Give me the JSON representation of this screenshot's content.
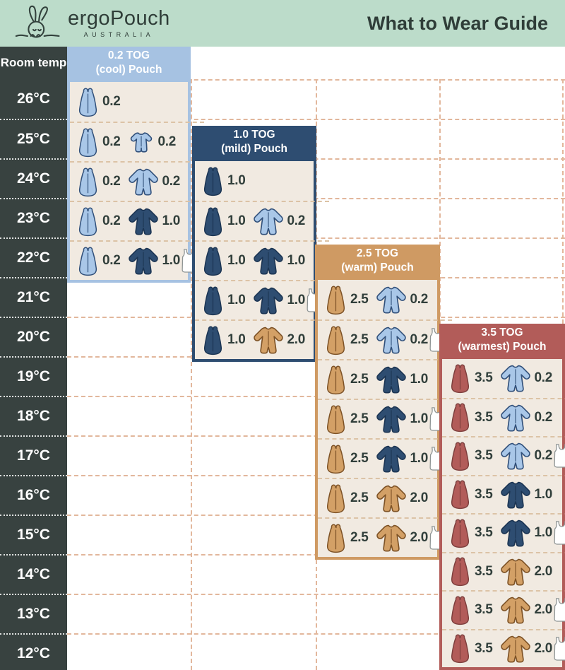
{
  "header": {
    "brand": "ergoPouch",
    "brand_sub": "AUSTRALIA",
    "title": "What to Wear Guide"
  },
  "colors": {
    "banner_bg": "#bcdcca",
    "banner_text": "#2f3d38",
    "temp_col_bg": "#384240",
    "panel_bg_cream": "#f1eae1",
    "grid_dash": "#e2b79c",
    "row_dash": "#dcc3a6",
    "label_text": "#313f3b",
    "palette": {
      "lightblue": {
        "fill": "#a9c7e8",
        "stroke": "#31507a"
      },
      "navy": {
        "fill": "#2e4d71",
        "stroke": "#1c3553"
      },
      "tan": {
        "fill": "#d3a066",
        "stroke": "#7d5226"
      },
      "red": {
        "fill": "#b25c59",
        "stroke": "#7e403e"
      },
      "singlet": {
        "fill": "#ffffff",
        "stroke": "#8e9494"
      }
    }
  },
  "chart_data": {
    "type": "table",
    "title": "What to Wear Guide",
    "row_header_label": "Room temp",
    "temperatures": [
      "26°C",
      "25°C",
      "24°C",
      "23°C",
      "22°C",
      "21°C",
      "20°C",
      "19°C",
      "18°C",
      "17°C",
      "16°C",
      "15°C",
      "14°C",
      "13°C",
      "12°C"
    ],
    "panels": [
      {
        "title": "0.2 TOG",
        "subtitle": "(cool) Pouch",
        "accent_color": "#a6c2e2",
        "pouch_color_key": "lightblue",
        "rows": [
          {
            "temp": "26°C",
            "pouch_tog": "0.2",
            "garment": null,
            "singlet": false
          },
          {
            "temp": "25°C",
            "pouch_tog": "0.2",
            "garment": {
              "tog": "0.2",
              "style": "short-sleeve-romper",
              "color_key": "lightblue"
            },
            "singlet": false
          },
          {
            "temp": "24°C",
            "pouch_tog": "0.2",
            "garment": {
              "tog": "0.2",
              "style": "long-sleeve-onesie",
              "color_key": "lightblue"
            },
            "singlet": false
          },
          {
            "temp": "23°C",
            "pouch_tog": "0.2",
            "garment": {
              "tog": "1.0",
              "style": "long-sleeve-onesie",
              "color_key": "navy"
            },
            "singlet": false
          },
          {
            "temp": "22°C",
            "pouch_tog": "0.2",
            "garment": {
              "tog": "1.0",
              "style": "long-sleeve-onesie",
              "color_key": "navy"
            },
            "singlet": true
          }
        ]
      },
      {
        "title": "1.0 TOG",
        "subtitle": "(mild) Pouch",
        "accent_color": "#2e4d71",
        "pouch_color_key": "navy",
        "rows": [
          {
            "temp": "24°C",
            "pouch_tog": "1.0",
            "garment": null,
            "singlet": false
          },
          {
            "temp": "23°C",
            "pouch_tog": "1.0",
            "garment": {
              "tog": "0.2",
              "style": "long-sleeve-onesie",
              "color_key": "lightblue"
            },
            "singlet": false
          },
          {
            "temp": "22°C",
            "pouch_tog": "1.0",
            "garment": {
              "tog": "1.0",
              "style": "long-sleeve-onesie",
              "color_key": "navy"
            },
            "singlet": false
          },
          {
            "temp": "21°C",
            "pouch_tog": "1.0",
            "garment": {
              "tog": "1.0",
              "style": "long-sleeve-onesie",
              "color_key": "navy"
            },
            "singlet": true
          },
          {
            "temp": "20°C",
            "pouch_tog": "1.0",
            "garment": {
              "tog": "2.0",
              "style": "long-sleeve-onesie",
              "color_key": "tan"
            },
            "singlet": false
          }
        ]
      },
      {
        "title": "2.5 TOG",
        "subtitle": "(warm) Pouch",
        "accent_color": "#cf9a63",
        "pouch_color_key": "tan",
        "rows": [
          {
            "temp": "21°C",
            "pouch_tog": "2.5",
            "garment": {
              "tog": "0.2",
              "style": "long-sleeve-onesie",
              "color_key": "lightblue"
            },
            "singlet": false
          },
          {
            "temp": "20°C",
            "pouch_tog": "2.5",
            "garment": {
              "tog": "0.2",
              "style": "long-sleeve-onesie",
              "color_key": "lightblue"
            },
            "singlet": true
          },
          {
            "temp": "19°C",
            "pouch_tog": "2.5",
            "garment": {
              "tog": "1.0",
              "style": "long-sleeve-onesie",
              "color_key": "navy"
            },
            "singlet": false
          },
          {
            "temp": "18°C",
            "pouch_tog": "2.5",
            "garment": {
              "tog": "1.0",
              "style": "long-sleeve-onesie",
              "color_key": "navy"
            },
            "singlet": true
          },
          {
            "temp": "17°C",
            "pouch_tog": "2.5",
            "garment": {
              "tog": "1.0",
              "style": "long-sleeve-onesie",
              "color_key": "navy"
            },
            "singlet": true
          },
          {
            "temp": "16°C",
            "pouch_tog": "2.5",
            "garment": {
              "tog": "2.0",
              "style": "long-sleeve-onesie",
              "color_key": "tan"
            },
            "singlet": false
          },
          {
            "temp": "15°C",
            "pouch_tog": "2.5",
            "garment": {
              "tog": "2.0",
              "style": "long-sleeve-onesie",
              "color_key": "tan"
            },
            "singlet": true
          }
        ]
      },
      {
        "title": "3.5 TOG",
        "subtitle": "(warmest) Pouch",
        "accent_color": "#b25c59",
        "pouch_color_key": "red",
        "rows": [
          {
            "temp": "19°C",
            "pouch_tog": "3.5",
            "garment": {
              "tog": "0.2",
              "style": "long-sleeve-onesie",
              "color_key": "lightblue"
            },
            "singlet": false
          },
          {
            "temp": "18°C",
            "pouch_tog": "3.5",
            "garment": {
              "tog": "0.2",
              "style": "long-sleeve-onesie",
              "color_key": "lightblue"
            },
            "singlet": false
          },
          {
            "temp": "17°C",
            "pouch_tog": "3.5",
            "garment": {
              "tog": "0.2",
              "style": "long-sleeve-onesie",
              "color_key": "lightblue"
            },
            "singlet": true
          },
          {
            "temp": "16°C",
            "pouch_tog": "3.5",
            "garment": {
              "tog": "1.0",
              "style": "long-sleeve-onesie",
              "color_key": "navy"
            },
            "singlet": false
          },
          {
            "temp": "15°C",
            "pouch_tog": "3.5",
            "garment": {
              "tog": "1.0",
              "style": "long-sleeve-onesie",
              "color_key": "navy"
            },
            "singlet": true
          },
          {
            "temp": "14°C",
            "pouch_tog": "3.5",
            "garment": {
              "tog": "2.0",
              "style": "long-sleeve-onesie",
              "color_key": "tan"
            },
            "singlet": false
          },
          {
            "temp": "13°C",
            "pouch_tog": "3.5",
            "garment": {
              "tog": "2.0",
              "style": "long-sleeve-onesie",
              "color_key": "tan"
            },
            "singlet": true
          },
          {
            "temp": "12°C",
            "pouch_tog": "3.5",
            "garment": {
              "tog": "2.0",
              "style": "long-sleeve-onesie",
              "color_key": "tan"
            },
            "singlet": true
          }
        ]
      }
    ]
  }
}
